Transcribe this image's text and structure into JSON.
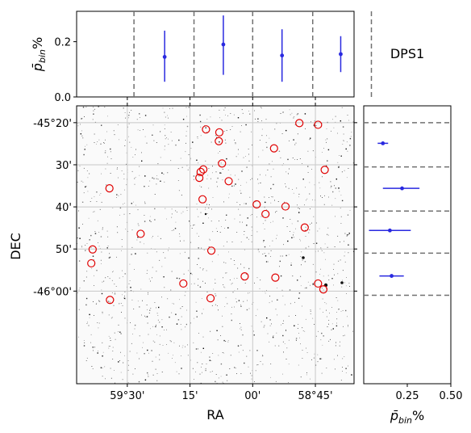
{
  "field_label": "DPS1",
  "chart_data": [
    {
      "panel": "top-histogram",
      "type": "errorbar",
      "ylabel": "p̄_bin%",
      "ylabel_main": "p̄",
      "ylabel_sub": "bin",
      "ylabel_suffix": "%",
      "ylim": [
        0,
        0.31
      ],
      "yticks": [
        0.0,
        0.2
      ],
      "ytick_labels": [
        "0.0",
        "0.2"
      ],
      "bin_edges_ra_arcmin": [
        -44.5,
        -22.0,
        0.0,
        22.5,
        44.5
      ],
      "points": [
        {
          "ra_arcmin": -33.0,
          "value": 0.145,
          "err_low": 0.09,
          "err_high": 0.095
        },
        {
          "ra_arcmin": -11.0,
          "value": 0.19,
          "err_low": 0.11,
          "err_high": 0.105
        },
        {
          "ra_arcmin": 11.0,
          "value": 0.15,
          "err_low": 0.095,
          "err_high": 0.095
        },
        {
          "ra_arcmin": 33.0,
          "value": 0.155,
          "err_low": 0.065,
          "err_high": 0.065
        }
      ],
      "color": "#2929e0",
      "edge_color": "#707070"
    },
    {
      "panel": "sky-image",
      "type": "scatter",
      "xlabel": "RA",
      "ylabel": "DEC",
      "xlim_arcmin": [
        -66,
        38
      ],
      "ylim_arcmin": [
        -62,
        4
      ],
      "xticks_arcmin": [
        -47,
        -23.5,
        0,
        23.5
      ],
      "xtick_labels": [
        "59°30'",
        "15'",
        "00'",
        "58°45'"
      ],
      "yticks_arcmin": [
        0,
        -10,
        -20,
        -30,
        -40
      ],
      "ytick_labels": [
        "-45°20'",
        "30'",
        "40'",
        "50'",
        "-46°00'"
      ],
      "marker_color": "#e00000",
      "sources": [
        {
          "ra": -17.5,
          "dec": -1.6
        },
        {
          "ra": -12.5,
          "dec": -2.3
        },
        {
          "ra": -12.7,
          "dec": -4.4
        },
        {
          "ra": 8.0,
          "dec": -6.1
        },
        {
          "ra": 17.5,
          "dec": -0.1
        },
        {
          "ra": 24.5,
          "dec": -0.5
        },
        {
          "ra": -11.5,
          "dec": -9.7
        },
        {
          "ra": 27.0,
          "dec": -11.2
        },
        {
          "ra": -18.5,
          "dec": -11.1
        },
        {
          "ra": -19.5,
          "dec": -11.7
        },
        {
          "ra": -20.0,
          "dec": -13.1
        },
        {
          "ra": -9.0,
          "dec": -13.9
        },
        {
          "ra": -53.7,
          "dec": -15.6
        },
        {
          "ra": -18.8,
          "dec": -18.2
        },
        {
          "ra": 1.5,
          "dec": -19.4
        },
        {
          "ra": 12.3,
          "dec": -19.9
        },
        {
          "ra": 4.8,
          "dec": -21.7
        },
        {
          "ra": 19.5,
          "dec": -24.9
        },
        {
          "ra": -42.0,
          "dec": -26.4
        },
        {
          "ra": -60.0,
          "dec": -30.1
        },
        {
          "ra": -15.5,
          "dec": -30.4
        },
        {
          "ra": -60.5,
          "dec": -33.4
        },
        {
          "ra": -3.0,
          "dec": -36.5
        },
        {
          "ra": 8.5,
          "dec": -36.8
        },
        {
          "ra": -26.0,
          "dec": -38.2
        },
        {
          "ra": 24.5,
          "dec": -38.2
        },
        {
          "ra": 26.5,
          "dec": -39.6
        },
        {
          "ra": -15.8,
          "dec": -41.7
        },
        {
          "ra": -53.5,
          "dec": -42.1
        }
      ]
    },
    {
      "panel": "right-histogram",
      "type": "errorbar",
      "xlabel": "p̄_bin%",
      "xlabel_main": "p̄",
      "xlabel_sub": "bin",
      "xlabel_suffix": "%",
      "xlim": [
        0,
        0.5
      ],
      "xticks": [
        0.25,
        0.5
      ],
      "xtick_labels": [
        "0.25",
        "0.50"
      ],
      "bin_edges_dec_arcmin": [
        -41.0,
        -31.0,
        -21.0,
        -10.5,
        0.0
      ],
      "points": [
        {
          "dec_arcmin": -4.9,
          "value": 0.11,
          "err_low": 0.03,
          "err_high": 0.03
        },
        {
          "dec_arcmin": -15.6,
          "value": 0.22,
          "err_low": 0.11,
          "err_high": 0.1
        },
        {
          "dec_arcmin": -25.6,
          "value": 0.15,
          "err_low": 0.12,
          "err_high": 0.12
        },
        {
          "dec_arcmin": -36.4,
          "value": 0.16,
          "err_low": 0.07,
          "err_high": 0.07
        }
      ],
      "color": "#2929e0",
      "edge_color": "#707070"
    }
  ]
}
